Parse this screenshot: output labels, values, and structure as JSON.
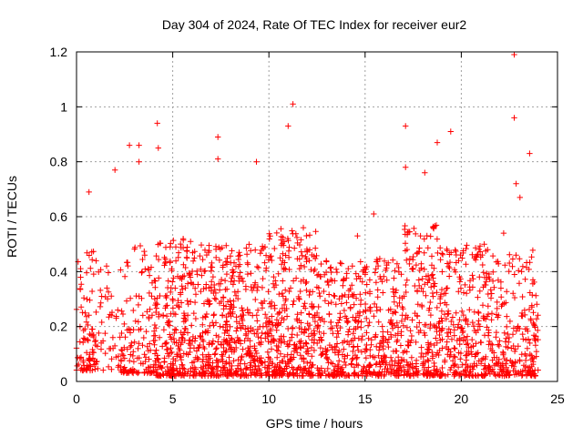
{
  "chart_data": {
    "type": "scatter",
    "title": "Day 304 of 2024, Rate Of TEC Index for receiver eur2",
    "xlabel": "GPS time / hours",
    "ylabel": "ROTI / TECUs",
    "xlim": [
      0,
      25
    ],
    "ylim": [
      0,
      1.2
    ],
    "x_ticks": [
      0,
      5,
      10,
      15,
      20,
      25
    ],
    "y_ticks": [
      0,
      0.2,
      0.4,
      0.6,
      0.8,
      1.0,
      1.2
    ],
    "x_tick_labels": [
      "0",
      "5",
      "10",
      "15",
      "20",
      "25"
    ],
    "y_tick_labels": [
      "0",
      "0.2",
      "0.4",
      "0.6",
      "0.8",
      "1",
      "1.2"
    ],
    "grid": true,
    "marker": "plus",
    "point_color": "#ff0000",
    "notable_points": [
      {
        "x": 22.75,
        "y": 1.19
      },
      {
        "x": 11.25,
        "y": 1.01
      },
      {
        "x": 22.75,
        "y": 0.96
      },
      {
        "x": 4.2,
        "y": 0.94
      },
      {
        "x": 11.0,
        "y": 0.93
      },
      {
        "x": 17.1,
        "y": 0.93
      },
      {
        "x": 19.45,
        "y": 0.91
      },
      {
        "x": 7.35,
        "y": 0.89
      },
      {
        "x": 2.75,
        "y": 0.86
      },
      {
        "x": 4.25,
        "y": 0.85
      },
      {
        "x": 18.75,
        "y": 0.87
      },
      {
        "x": 3.25,
        "y": 0.86
      },
      {
        "x": 3.25,
        "y": 0.8
      },
      {
        "x": 23.55,
        "y": 0.83
      },
      {
        "x": 9.35,
        "y": 0.8
      },
      {
        "x": 7.35,
        "y": 0.81
      },
      {
        "x": 2.0,
        "y": 0.77
      },
      {
        "x": 17.1,
        "y": 0.78
      },
      {
        "x": 18.1,
        "y": 0.76
      },
      {
        "x": 0.65,
        "y": 0.69
      },
      {
        "x": 22.85,
        "y": 0.72
      },
      {
        "x": 23.05,
        "y": 0.67
      },
      {
        "x": 15.45,
        "y": 0.61
      },
      {
        "x": 14.6,
        "y": 0.53
      },
      {
        "x": 22.2,
        "y": 0.54
      }
    ],
    "density_profile": [
      {
        "t0": 0.0,
        "t1": 1.0,
        "n": 90,
        "lo": 0.04,
        "hi": 0.48
      },
      {
        "t0": 1.0,
        "t1": 2.3,
        "n": 50,
        "lo": 0.04,
        "hi": 0.46
      },
      {
        "t0": 2.3,
        "t1": 4.0,
        "n": 120,
        "lo": 0.03,
        "hi": 0.5
      },
      {
        "t0": 4.0,
        "t1": 6.0,
        "n": 260,
        "lo": 0.02,
        "hi": 0.52
      },
      {
        "t0": 6.0,
        "t1": 8.0,
        "n": 260,
        "lo": 0.02,
        "hi": 0.5
      },
      {
        "t0": 8.0,
        "t1": 10.0,
        "n": 250,
        "lo": 0.02,
        "hi": 0.5
      },
      {
        "t0": 10.0,
        "t1": 12.5,
        "n": 330,
        "lo": 0.02,
        "hi": 0.56
      },
      {
        "t0": 12.5,
        "t1": 15.0,
        "n": 260,
        "lo": 0.02,
        "hi": 0.44
      },
      {
        "t0": 15.0,
        "t1": 17.0,
        "n": 220,
        "lo": 0.02,
        "hi": 0.46
      },
      {
        "t0": 17.0,
        "t1": 19.0,
        "n": 240,
        "lo": 0.02,
        "hi": 0.58
      },
      {
        "t0": 19.0,
        "t1": 21.5,
        "n": 260,
        "lo": 0.02,
        "hi": 0.5
      },
      {
        "t0": 21.5,
        "t1": 24.0,
        "n": 230,
        "lo": 0.02,
        "hi": 0.48
      }
    ]
  }
}
